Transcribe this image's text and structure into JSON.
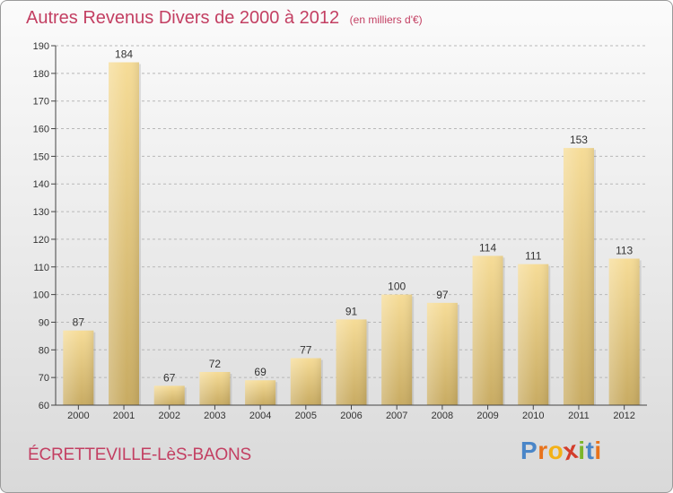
{
  "header": {
    "title": "Autres Revenus Divers de 2000 à 2012",
    "subtitle": "(en milliers d'€)"
  },
  "footer": {
    "commune": "ÉCRETTEVILLE-LèS-BAONS",
    "logo_letters": [
      "P",
      "r",
      "o",
      "x",
      "i",
      "t",
      "i"
    ],
    "logo_colors": [
      "#4a86c8",
      "#e8731c",
      "#f3b117",
      "#d33d2b",
      "#7bb52a",
      "#4a86c8",
      "#e8731c"
    ]
  },
  "colors": {
    "bar_light": "#f6dc97",
    "bar_dark": "#c8ab62",
    "axis": "#444444",
    "grid": "#b8b8b8"
  },
  "chart_data": {
    "type": "bar",
    "categories": [
      "2000",
      "2001",
      "2002",
      "2003",
      "2004",
      "2005",
      "2006",
      "2007",
      "2008",
      "2009",
      "2010",
      "2011",
      "2012"
    ],
    "values": [
      87,
      184,
      67,
      72,
      69,
      77,
      91,
      100,
      97,
      114,
      111,
      153,
      113
    ],
    "title": "Autres Revenus Divers de 2000 à 2012",
    "xlabel": "",
    "ylabel": "",
    "ylim": [
      60,
      190
    ],
    "yticks": [
      60,
      70,
      80,
      90,
      100,
      110,
      120,
      130,
      140,
      150,
      160,
      170,
      180,
      190
    ],
    "grid": true,
    "data_labels": true
  }
}
